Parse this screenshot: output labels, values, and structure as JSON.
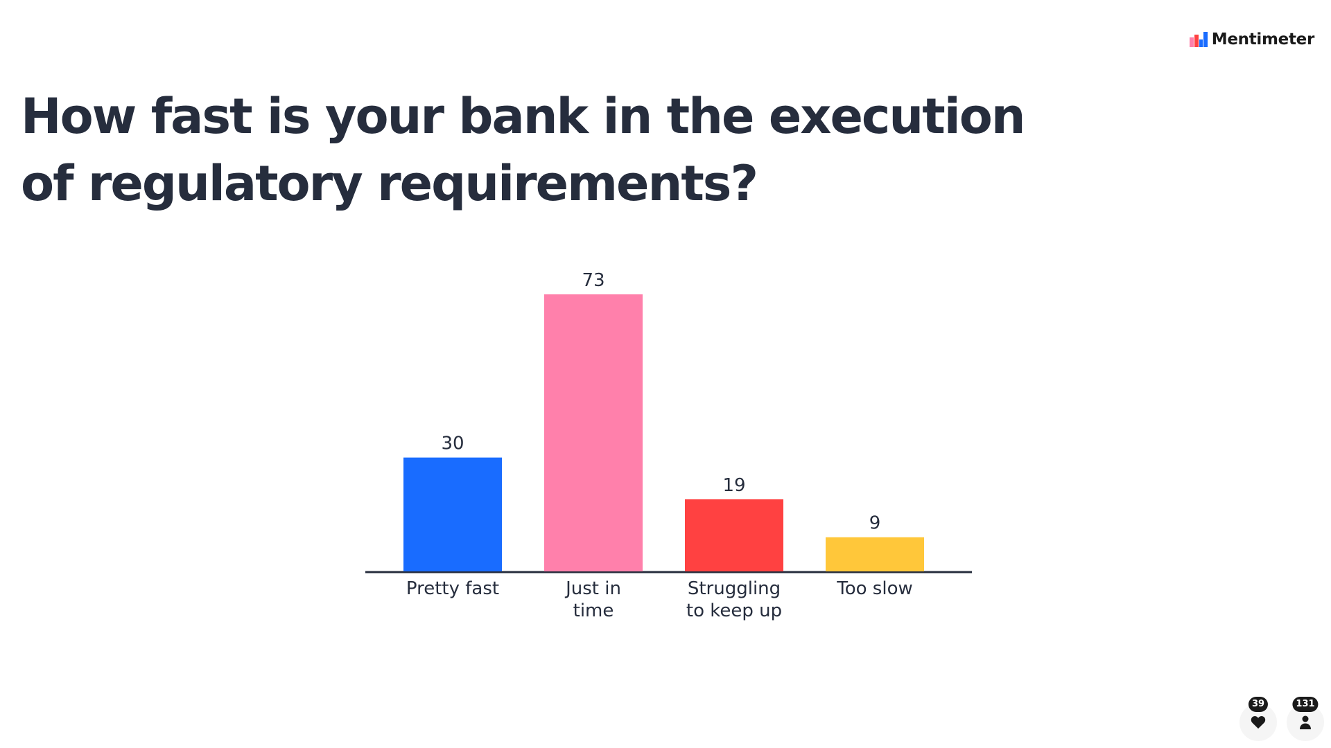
{
  "brand": {
    "name": "Mentimeter",
    "logo_icon": "mentimeter-logo-icon",
    "logo_colors": [
      "#ff4141",
      "#196cff"
    ]
  },
  "question": {
    "title": "How fast is your bank in the execution of regulatory requirements?"
  },
  "chart_data": {
    "type": "bar",
    "title": "",
    "xlabel": "",
    "ylabel": "",
    "grid": false,
    "categories": [
      [
        "Pretty fast"
      ],
      [
        "Just in",
        "time"
      ],
      [
        "Struggling",
        "to keep up"
      ],
      [
        "Too slow"
      ]
    ],
    "values": [
      30,
      73,
      19,
      9
    ],
    "colors": [
      "#196cff",
      "#ff80ab",
      "#ff4141",
      "#ffc73a"
    ],
    "ylim": [
      0,
      73
    ]
  },
  "counters": {
    "reactions": {
      "count": "39",
      "icon": "heart-icon"
    },
    "participants": {
      "count": "131",
      "icon": "person-icon"
    }
  }
}
